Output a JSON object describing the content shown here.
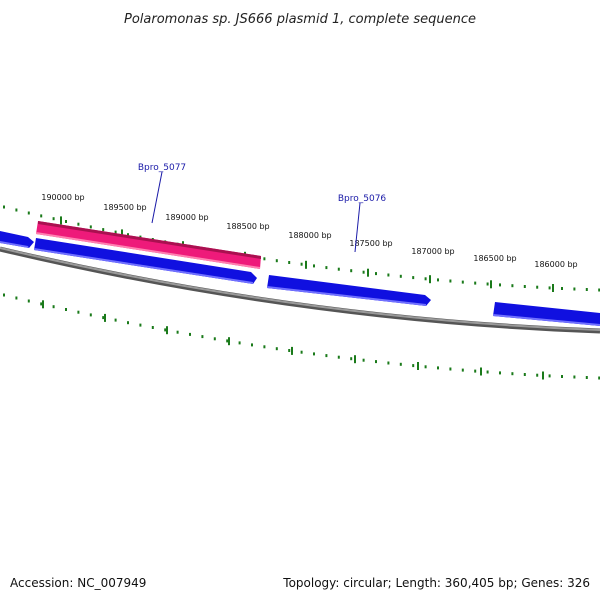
{
  "title": "Polaromonas sp. JS666 plasmid 1, complete sequence",
  "accession": "Accession: NC_007949",
  "summary": "Topology: circular; Length: 360,405 bp; Genes: 326",
  "colors": {
    "backbone": "#777777",
    "tick": "#1a7a1a",
    "gene": "#1010e0",
    "gene_highlight": "#ee1a7a",
    "label_line": "#1a1aa8"
  },
  "scale_labels": [
    "190000 bp",
    "189500 bp",
    "189000 bp",
    "188500 bp",
    "188000 bp",
    "187500 bp",
    "187000 bp",
    "186500 bp",
    "186000 bp"
  ],
  "genes": [
    {
      "name": "Bpro_5077",
      "highlighted": true
    },
    {
      "name": "Bpro_5076",
      "highlighted": false
    }
  ]
}
